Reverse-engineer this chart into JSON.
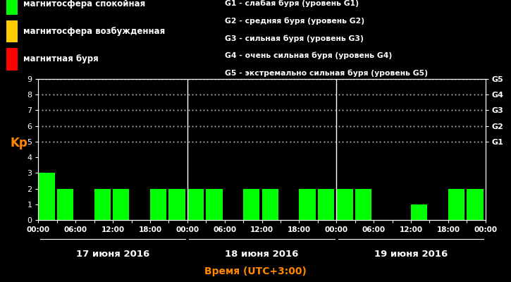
{
  "background_color": "#000000",
  "bar_color_green": "#00ff00",
  "bar_color_yellow": "#ffcc00",
  "bar_color_red": "#ff0000",
  "text_color": "#ffffff",
  "orange_color": "#ff8800",
  "legend_left": [
    [
      "магнитосфера спокойная",
      "#00ff00"
    ],
    [
      "магнитосфера возбужденная",
      "#ffcc00"
    ],
    [
      "магнитная буря",
      "#ff0000"
    ]
  ],
  "legend_right": [
    "G1 - слабая буря (уровень G1)",
    "G2 - средняя буря (уровень G2)",
    "G3 - сильная буря (уровень G3)",
    "G4 - очень сильная буря (уровень G4)",
    "G5 - экстремально сильная буря (уровень G5)"
  ],
  "right_axis_labels": [
    "G1",
    "G2",
    "G3",
    "G4",
    "G5"
  ],
  "right_axis_positions": [
    5,
    6,
    7,
    8,
    9
  ],
  "ylabel": "Kp",
  "xlabel": "Время (UTC+3:00)",
  "ylim": [
    0,
    9
  ],
  "yticks": [
    0,
    1,
    2,
    3,
    4,
    5,
    6,
    7,
    8,
    9
  ],
  "day_labels": [
    "17 июня 2016",
    "18 июня 2016",
    "19 июня 2016"
  ],
  "bar_values_day1": [
    3,
    2,
    0,
    2,
    2,
    0,
    2,
    2
  ],
  "bar_values_day2": [
    2,
    2,
    0,
    2,
    2,
    0,
    2,
    2
  ],
  "bar_values_day3": [
    2,
    2,
    0,
    0,
    1,
    0,
    2,
    2
  ],
  "n_per_day": 8,
  "bar_width": 0.88,
  "dot_y_values": [
    5,
    6,
    7,
    8,
    9
  ],
  "xtick_labels_per_day": [
    "00:00",
    "",
    "06:00",
    "",
    "12:00",
    "",
    "18:00",
    "",
    "00:00"
  ]
}
